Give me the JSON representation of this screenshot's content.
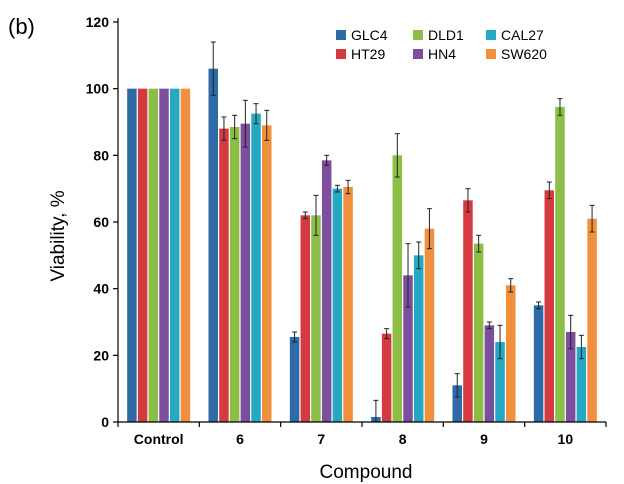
{
  "panel_label": "(b)",
  "colors": {
    "GLC4": "#2d6aa6",
    "HT29": "#d43a3f",
    "DLD1": "#8bbd47",
    "HN4": "#7b4f9e",
    "CAL27": "#25a9c2",
    "SW620": "#f28f3c"
  },
  "chart_data": {
    "type": "bar",
    "title": "",
    "xlabel": "Compound",
    "ylabel": "Viability, %",
    "ylim": [
      0,
      120
    ],
    "yticks": [
      0,
      20,
      40,
      60,
      80,
      100,
      120
    ],
    "grid": false,
    "legend_position": "top-right",
    "legend_layout": [
      [
        "GLC4",
        "DLD1",
        "CAL27"
      ],
      [
        "HT29",
        "HN4",
        "SW620"
      ]
    ],
    "categories": [
      "Control",
      "6",
      "7",
      "8",
      "9",
      "10"
    ],
    "series": [
      {
        "name": "GLC4",
        "values": [
          100,
          106,
          25.5,
          1.5,
          11,
          35
        ],
        "errors": [
          0,
          8,
          1.5,
          5,
          3.5,
          1
        ]
      },
      {
        "name": "HT29",
        "values": [
          100,
          88,
          62,
          26.5,
          66.5,
          69.5
        ],
        "errors": [
          0,
          3.5,
          1,
          1.5,
          3.5,
          2.5
        ]
      },
      {
        "name": "DLD1",
        "values": [
          100,
          88.5,
          62,
          80,
          53.5,
          94.5
        ],
        "errors": [
          0,
          3.5,
          6,
          6.5,
          2.5,
          2.5
        ]
      },
      {
        "name": "HN4",
        "values": [
          100,
          89.5,
          78.5,
          44,
          29,
          27
        ],
        "errors": [
          0,
          7,
          1.5,
          9.5,
          1,
          5
        ]
      },
      {
        "name": "CAL27",
        "values": [
          100,
          92.5,
          70,
          50,
          24,
          22.5
        ],
        "errors": [
          0,
          3,
          1,
          4,
          5,
          3.5
        ]
      },
      {
        "name": "SW620",
        "values": [
          100,
          89,
          70.5,
          58,
          41,
          61
        ],
        "errors": [
          0,
          4.5,
          2,
          6,
          2,
          4
        ]
      }
    ]
  }
}
